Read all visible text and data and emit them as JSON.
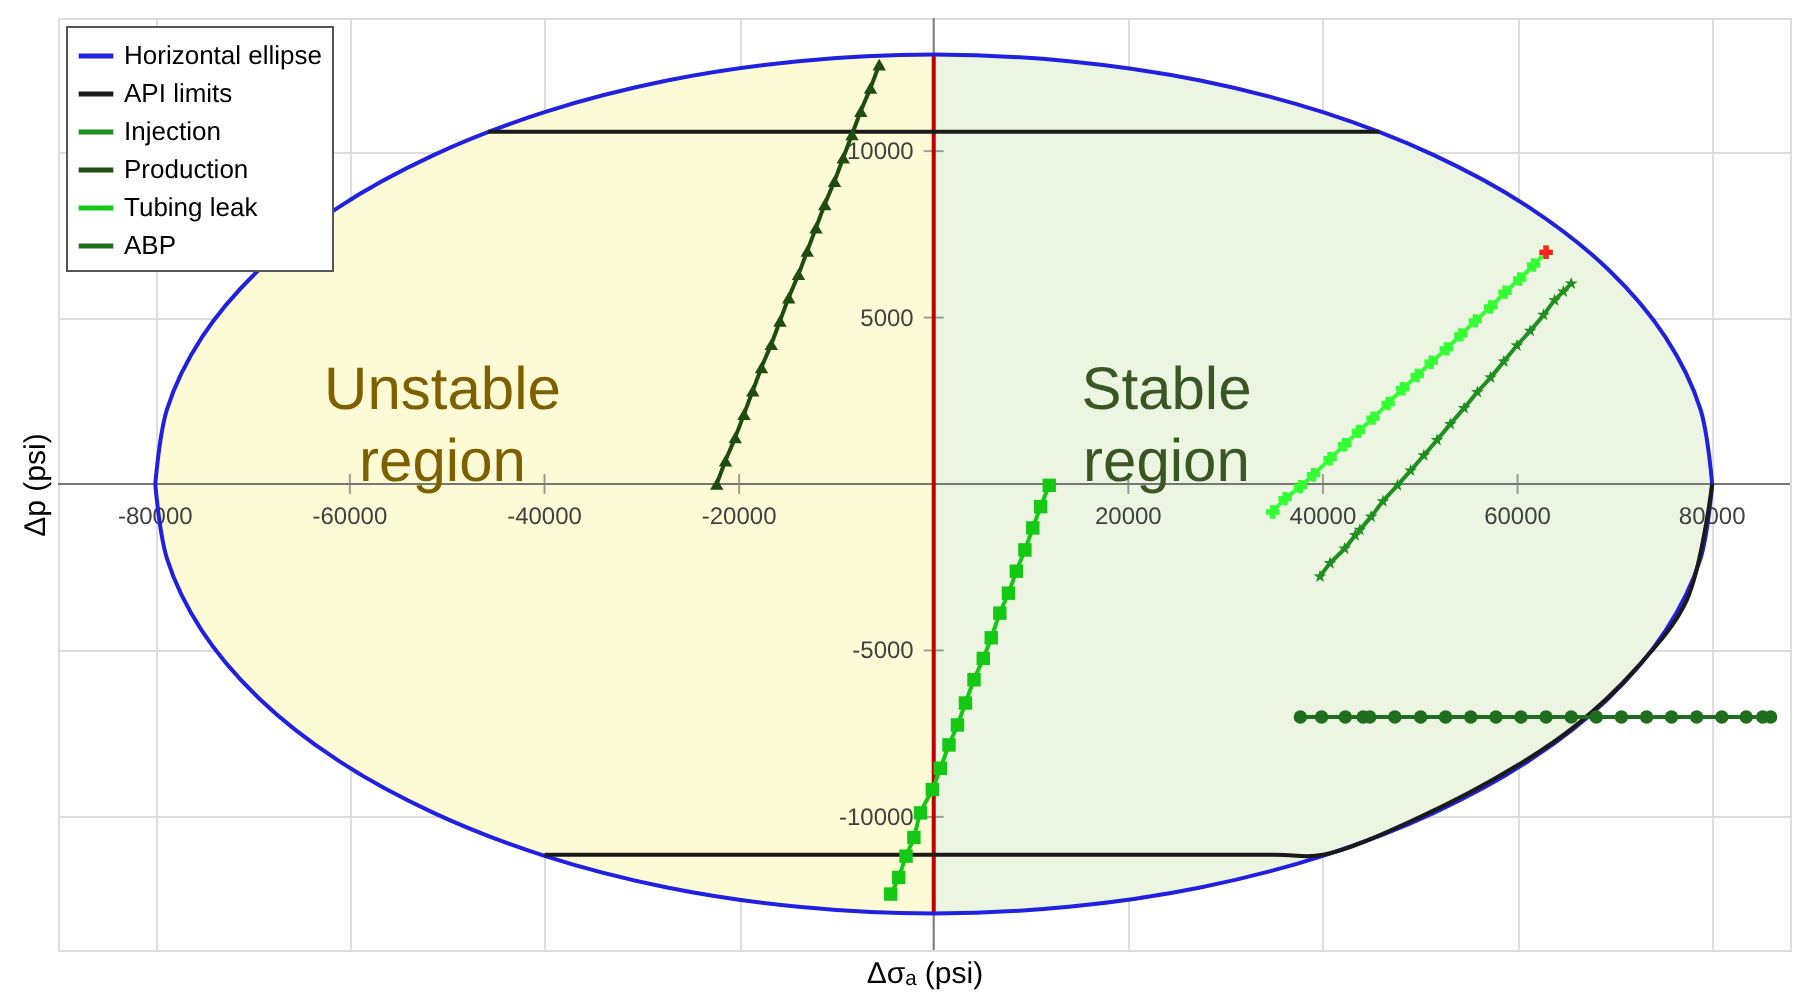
{
  "chart_data": {
    "type": "line",
    "xlabel": "Δσₐ (psi)",
    "ylabel": "Δp (psi)",
    "xlim": [
      -90000,
      88000
    ],
    "ylim": [
      -14000,
      14000
    ],
    "xticks": [
      -80000,
      -60000,
      -40000,
      -20000,
      20000,
      40000,
      60000,
      80000
    ],
    "yticks": [
      -10000,
      -5000,
      5000,
      10000
    ],
    "grid": true,
    "legend": "top left",
    "annotations": [
      "Unstable region",
      "Stable region"
    ],
    "series": [
      {
        "type": "area",
        "color": "#fdfbd5",
        "x": [
          -80000,
          -78800,
          -75200,
          -69300,
          -61300,
          -51400,
          -40000,
          -27400,
          -13900,
          0
        ],
        "values": [
          0,
          2240,
          4410,
          6450,
          8290,
          9880,
          11170,
          12120,
          12700,
          12900
        ]
      },
      {
        "type": "area",
        "color": "#fdfbd5",
        "x": [
          -80000,
          -78800,
          -75200,
          -69300,
          -61300,
          -51400,
          -40000,
          -27400,
          -13900,
          0
        ],
        "values": [
          0,
          -2240,
          -4410,
          -6450,
          -8290,
          -9880,
          -11170,
          -12120,
          -12700,
          -12900
        ]
      },
      {
        "type": "area",
        "color": "#ebf5e1",
        "x": [
          0,
          13900,
          27400,
          40000,
          51400,
          61300,
          69300,
          75200,
          78800,
          80000
        ],
        "values": [
          12900,
          12700,
          12120,
          11170,
          9880,
          8290,
          6450,
          4410,
          2240,
          0
        ]
      },
      {
        "type": "area",
        "color": "#ebf5e1",
        "x": [
          0,
          13900,
          27400,
          40000,
          51400,
          61300,
          69300,
          75200,
          78800,
          80000
        ],
        "values": [
          -12900,
          -12700,
          -12120,
          -11170,
          -9880,
          -8290,
          -6450,
          -4410,
          -2240,
          0
        ]
      },
      {
        "color": "#c00000",
        "marker": "none",
        "x": [
          0,
          0
        ],
        "values": [
          -12900,
          12900
        ]
      },
      {
        "name": "Horizontal ellipse",
        "color": "#2020e0",
        "marker": "none",
        "x": [
          -80000,
          -78800,
          -75200,
          -69300,
          -61300,
          -51400,
          -40000,
          -27400,
          -13900,
          0,
          13900,
          27400,
          40000,
          51400,
          61300,
          69300,
          75200,
          78800,
          80000,
          null,
          -80000,
          -78800,
          -75200,
          -69300,
          -61300,
          -51400,
          -40000,
          -27400,
          -13900,
          0,
          13900,
          27400,
          40000,
          51400,
          61300,
          69300,
          75200,
          78800,
          80000
        ],
        "values": [
          0,
          2240,
          4410,
          6450,
          8290,
          9880,
          11170,
          12120,
          12700,
          12900,
          12700,
          12120,
          11170,
          9880,
          8290,
          6450,
          4410,
          2240,
          0,
          null,
          0,
          -2240,
          -4410,
          -6450,
          -8290,
          -9880,
          -11170,
          -12120,
          -12700,
          -12900,
          -12700,
          -12120,
          -11170,
          -9880,
          -8290,
          -6450,
          -4410,
          -2240,
          0
        ]
      },
      {
        "name": "API limits",
        "color": "#1a1a1a",
        "marker": "none",
        "x": [
          -45800,
          45800,
          null,
          -40000,
          35000,
          40000,
          50000,
          60000,
          66000,
          72000,
          77400,
          80000
        ],
        "values": [
          10580,
          10580,
          null,
          -11140,
          -11140,
          -11140,
          -10000,
          -8450,
          -7250,
          -5600,
          -3480,
          0
        ]
      },
      {
        "name": "Injection",
        "color": "#1f8f1f",
        "marker": "star",
        "x": [
          39700,
          40730,
          42230,
          43310,
          43790,
          44950,
          46170,
          47660,
          49010,
          50370,
          51730,
          53090,
          54510,
          55870,
          57230,
          58590,
          59940,
          61300,
          62670,
          63810,
          64700,
          65520
        ],
        "values": [
          -2780,
          -2380,
          -1940,
          -1540,
          -1380,
          -980,
          -520,
          -40,
          400,
          860,
          1320,
          1800,
          2280,
          2760,
          3200,
          3680,
          4160,
          4600,
          5080,
          5520,
          5780,
          6020
        ]
      },
      {
        "name": "Production",
        "color": "#1e4d0f",
        "marker": "triangle",
        "x": [
          -22300,
          -21400,
          -20400,
          -19500,
          -18600,
          -17700,
          -16700,
          -15800,
          -14900,
          -13900,
          -13000,
          -12100,
          -11200,
          -10200,
          -9300,
          -8400,
          -7500,
          -6500,
          -5600
        ],
        "values": [
          0,
          700,
          1400,
          2100,
          2800,
          3500,
          4200,
          4900,
          5600,
          6300,
          7000,
          7700,
          8400,
          9100,
          9800,
          10500,
          11200,
          11900,
          12600
        ]
      },
      {
        "name": "Tubing leak",
        "color": "#14c814",
        "marker": "square",
        "x": [
          -4420,
          -3600,
          -2850,
          -2040,
          -1360,
          -140,
          680,
          1570,
          2440,
          3260,
          4140,
          5090,
          5910,
          6790,
          7680,
          8490,
          9370,
          10180,
          10990,
          11870
        ],
        "values": [
          -12320,
          -11820,
          -11180,
          -10620,
          -9880,
          -9180,
          -8540,
          -7840,
          -7240,
          -6580,
          -5880,
          -5240,
          -4620,
          -3880,
          -3280,
          -2620,
          -1980,
          -1320,
          -680,
          -40
        ]
      },
      {
        "name": "ABP",
        "color": "#1e6e1e",
        "marker": "circle",
        "x": [
          37680,
          39860,
          42300,
          44130,
          44810,
          47390,
          50040,
          52600,
          55190,
          57780,
          60350,
          62930,
          65520,
          68090,
          70670,
          73260,
          75820,
          78410,
          80990,
          83500,
          85200,
          86010
        ],
        "values": [
          -7000,
          -7000,
          -7000,
          -7000,
          -7000,
          -7000,
          -7000,
          -7000,
          -7000,
          -7000,
          -7000,
          -7000,
          -7000,
          -7000,
          -7000,
          -7000,
          -7000,
          -7000,
          -7000,
          -7000,
          -7000,
          -7000
        ]
      },
      {
        "color": "#33ff33",
        "marker": "cross",
        "x": [
          34830,
          36110,
          37680,
          39040,
          40730,
          42230,
          43650,
          45150,
          46700,
          48190,
          49690,
          51120,
          52680,
          54170,
          55660,
          57230,
          58720,
          60220,
          61640,
          62930
        ],
        "values": [
          -840,
          -440,
          -80,
          280,
          760,
          1180,
          1580,
          1980,
          2420,
          2860,
          3260,
          3660,
          4060,
          4480,
          4900,
          5320,
          5760,
          6160,
          6580,
          6960
        ]
      },
      {
        "type": "scatter",
        "color": "#ff2020",
        "marker": "cross",
        "x": [
          62930
        ],
        "values": [
          6960
        ]
      }
    ]
  }
}
